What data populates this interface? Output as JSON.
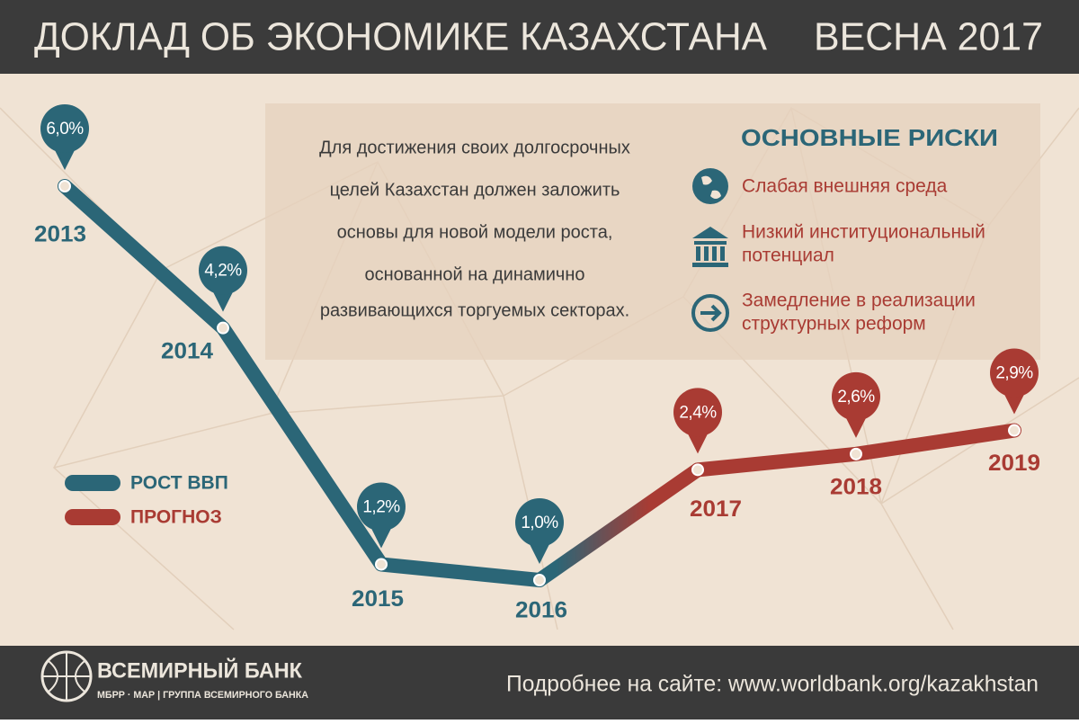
{
  "header": {
    "title": "ДОКЛАД ОБ ЭКОНОМИКЕ КАЗАХСТАНА",
    "edition": "ВЕСНА 2017"
  },
  "text_box": {
    "lines": [
      "Для достижения своих долгосрочных",
      "целей Казахстан должен заложить",
      "основы для новой модели роста,",
      "основанной на динамично",
      "развивающихся торгуемых секторах."
    ]
  },
  "risks": {
    "title": "ОСНОВНЫЕ РИСКИ",
    "items": [
      {
        "lines": [
          "Слабая внешняя среда"
        ]
      },
      {
        "lines": [
          "Низкий институциональный",
          "потенциал"
        ]
      },
      {
        "lines": [
          "Замедление в реализации",
          "структурных реформ"
        ]
      }
    ]
  },
  "footer": {
    "brand": "ВСЕМИРНЫЙ БАНК",
    "sub": "МБРР · МАР | ГРУППА ВСЕМИРНОГО БАНКА",
    "link": "Подробнее на сайте: www.worldbank.org/kazakhstan"
  },
  "chart_data": {
    "type": "line",
    "categories": [
      "2013",
      "2014",
      "2015",
      "2016",
      "2017",
      "2018",
      "2019"
    ],
    "series": [
      {
        "name": "РОСТ ВВП",
        "color": "#2b6677",
        "values": [
          6.0,
          4.2,
          1.2,
          1.0,
          null,
          null,
          null
        ],
        "value_labels": [
          "6,0%",
          "4,2%",
          "1,2%",
          "1,0%",
          null,
          null,
          null
        ]
      },
      {
        "name": "ПРОГНОЗ",
        "color": "#a93b33",
        "values": [
          null,
          null,
          null,
          null,
          2.4,
          2.6,
          2.9
        ],
        "value_labels": [
          null,
          null,
          null,
          null,
          "2,4%",
          "2,6%",
          "2,9%"
        ]
      }
    ]
  }
}
